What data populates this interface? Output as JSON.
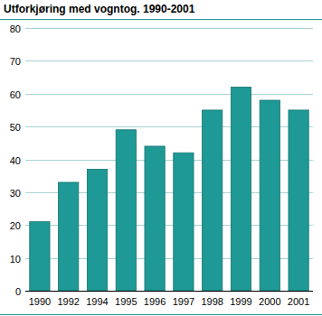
{
  "chart_data": {
    "type": "bar",
    "title": "Utforkjøring med vogntog. 1990-2001",
    "categories": [
      "1990",
      "1992",
      "1994",
      "1995",
      "1996",
      "1997",
      "1998",
      "1999",
      "2000",
      "2001"
    ],
    "values": [
      21,
      33,
      37,
      49,
      44,
      42,
      55,
      62,
      58,
      55
    ],
    "color": "#1f9995",
    "ylim": [
      0,
      80
    ],
    "yticks": [
      0,
      10,
      20,
      30,
      40,
      50,
      60,
      70,
      80
    ],
    "grid": true
  }
}
